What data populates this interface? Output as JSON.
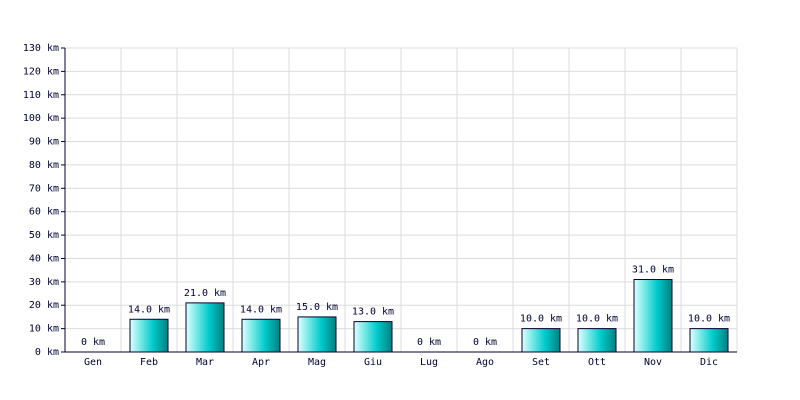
{
  "chart_data": {
    "type": "bar",
    "categories": [
      "Gen",
      "Feb",
      "Mar",
      "Apr",
      "Mag",
      "Giu",
      "Lug",
      "Ago",
      "Set",
      "Ott",
      "Nov",
      "Dic"
    ],
    "values": [
      0,
      14,
      21,
      14,
      15,
      13,
      0,
      0,
      10,
      10,
      31,
      10
    ],
    "value_labels": [
      "0 km",
      "14.0 km",
      "21.0 km",
      "14.0 km",
      "15.0 km",
      "13.0 km",
      "0 km",
      "0 km",
      "10.0 km",
      "10.0 km",
      "31.0 km",
      "10.0 km"
    ],
    "color": "#00cccc",
    "ylim": [
      0,
      130
    ],
    "yticks": [
      {
        "value": 0,
        "label": "0 km"
      },
      {
        "value": 10,
        "label": "10 km"
      },
      {
        "value": 20,
        "label": "20 km"
      },
      {
        "value": 30,
        "label": "30 km"
      },
      {
        "value": 40,
        "label": "40 km"
      },
      {
        "value": 50,
        "label": "50 km"
      },
      {
        "value": 60,
        "label": "60 km"
      },
      {
        "value": 70,
        "label": "70 km"
      },
      {
        "value": 80,
        "label": "80 km"
      },
      {
        "value": 90,
        "label": "90 km"
      },
      {
        "value": 100,
        "label": "100 km"
      },
      {
        "value": 110,
        "label": "110 km"
      },
      {
        "value": 120,
        "label": "120 km"
      },
      {
        "value": 130,
        "label": "130 km"
      }
    ],
    "grid": true
  }
}
